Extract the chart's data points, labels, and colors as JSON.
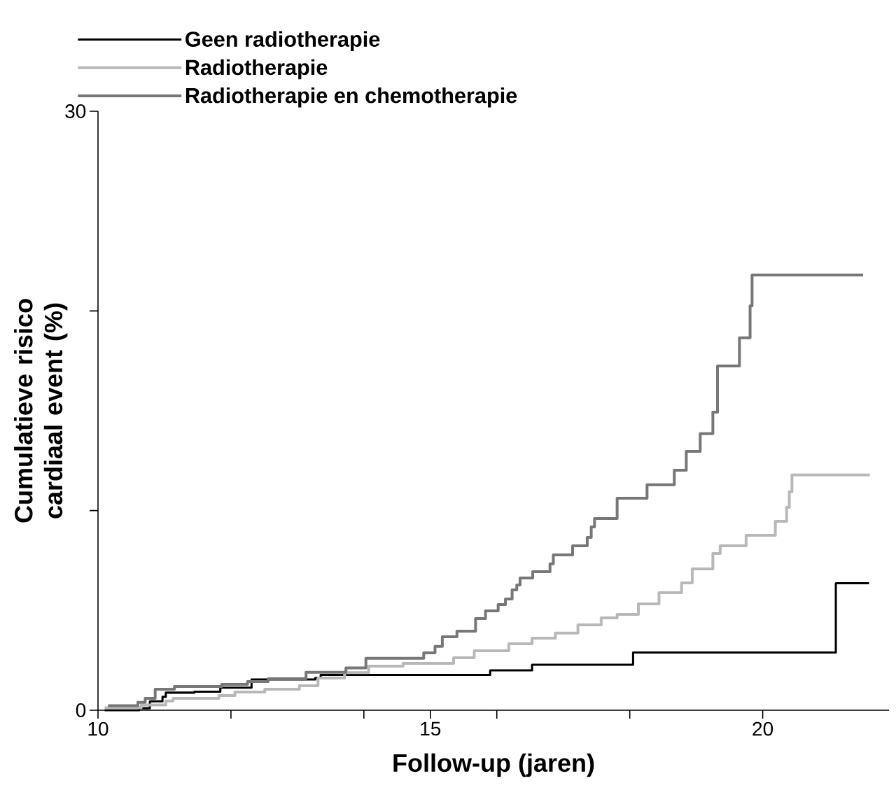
{
  "chart_data": {
    "type": "step",
    "xlabel": "Follow-up (jaren)",
    "ylabel": "Cumulatieve risico cardiaal event (%)",
    "xlim": [
      10,
      21.9
    ],
    "ylim": [
      0,
      30
    ],
    "xticks": [
      10,
      {
        "value": 12,
        "label": null
      },
      {
        "value": 14,
        "label": null
      },
      15,
      {
        "value": 16,
        "label": null
      },
      {
        "value": 18,
        "label": null
      },
      20
    ],
    "yticks": [
      0,
      {
        "value": 10,
        "label": null
      },
      {
        "value": 20,
        "label": null
      },
      30
    ],
    "grid": false,
    "legend": "top left",
    "marker": "none",
    "line_style": "solid",
    "series": [
      {
        "name": "Geen radiotherapie",
        "color": "#000000",
        "x": [
          10.1,
          10.62,
          10.78,
          10.97,
          11.02,
          11.45,
          11.84,
          12.31,
          13.27,
          13.35,
          15.9,
          16.53,
          18.05,
          21.1,
          21.6
        ],
        "values": [
          0,
          0.1,
          0.45,
          0.67,
          0.88,
          0.93,
          1.13,
          1.54,
          1.62,
          1.77,
          2.0,
          2.28,
          2.89,
          6.36,
          6.36
        ]
      },
      {
        "name": "Radiotherapie",
        "color": "#b8b8b8",
        "x": [
          10.1,
          10.65,
          11.02,
          11.13,
          11.82,
          12.06,
          12.51,
          13.03,
          13.31,
          13.71,
          14.07,
          14.59,
          15.35,
          15.66,
          16.18,
          16.53,
          16.88,
          17.22,
          17.57,
          17.81,
          18.13,
          18.44,
          18.78,
          18.94,
          19.25,
          19.36,
          19.75,
          20.19,
          20.36,
          20.4,
          20.44,
          21.61
        ],
        "values": [
          0.12,
          0.26,
          0.46,
          0.6,
          0.74,
          0.91,
          1.05,
          1.23,
          1.61,
          1.88,
          2.21,
          2.35,
          2.63,
          2.98,
          3.33,
          3.61,
          3.86,
          4.28,
          4.63,
          4.8,
          5.33,
          5.89,
          6.38,
          7.08,
          7.85,
          8.24,
          8.76,
          9.46,
          10.16,
          10.94,
          11.78,
          11.78
        ]
      },
      {
        "name": "Radiotherapie en chemotherapie",
        "color": "#777777",
        "x": [
          10.15,
          10.6,
          10.71,
          10.86,
          11.15,
          11.86,
          12.25,
          12.56,
          13.13,
          13.73,
          14.03,
          14.9,
          15.07,
          15.18,
          15.4,
          15.68,
          15.83,
          16.02,
          16.13,
          16.23,
          16.3,
          16.35,
          16.54,
          16.8,
          16.85,
          17.14,
          17.36,
          17.42,
          17.47,
          17.81,
          18.26,
          18.67,
          18.85,
          19.06,
          19.25,
          19.32,
          19.65,
          19.81,
          19.84,
          21.51
        ],
        "values": [
          0.23,
          0.39,
          0.6,
          1.05,
          1.19,
          1.3,
          1.44,
          1.58,
          1.9,
          2.12,
          2.6,
          2.87,
          3.2,
          3.68,
          3.96,
          4.59,
          4.98,
          5.29,
          5.57,
          6.03,
          6.27,
          6.62,
          6.94,
          7.33,
          7.78,
          8.24,
          8.66,
          9.18,
          9.6,
          10.62,
          11.29,
          12.02,
          12.97,
          13.85,
          14.93,
          17.24,
          18.65,
          20.26,
          21.8,
          21.8
        ]
      }
    ]
  }
}
